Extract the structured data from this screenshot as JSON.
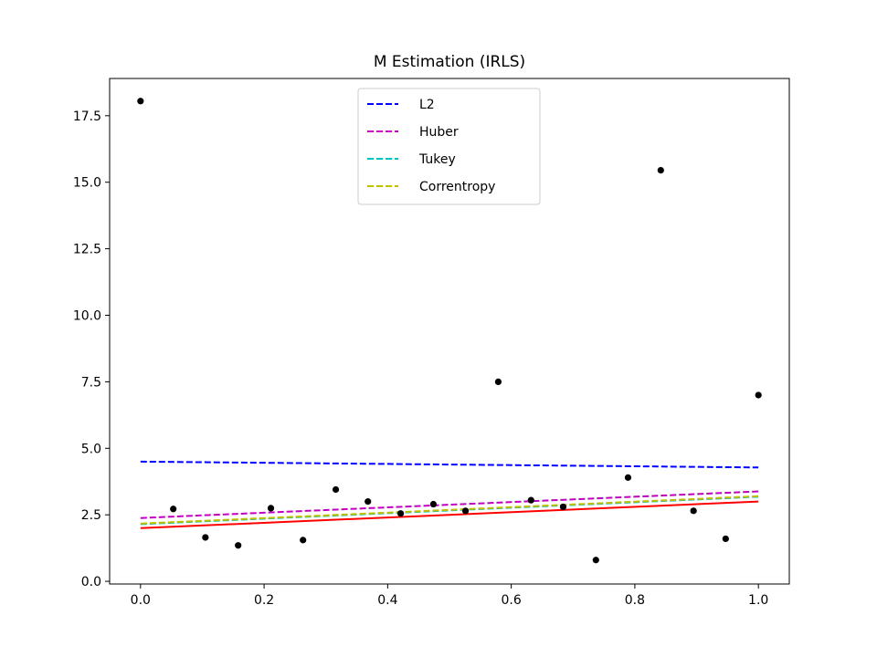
{
  "chart_data": {
    "type": "scatter",
    "title": "M Estimation (IRLS)",
    "xlabel": "",
    "ylabel": "",
    "xlim": [
      -0.05,
      1.05
    ],
    "ylim": [
      -0.1,
      18.9
    ],
    "x_ticks": [
      0.0,
      0.2,
      0.4,
      0.6,
      0.8,
      1.0
    ],
    "x_tick_labels": [
      "0.0",
      "0.2",
      "0.4",
      "0.6",
      "0.8",
      "1.0"
    ],
    "y_ticks": [
      0.0,
      2.5,
      5.0,
      7.5,
      10.0,
      12.5,
      15.0,
      17.5
    ],
    "y_tick_labels": [
      "0.0",
      "2.5",
      "5.0",
      "7.5",
      "10.0",
      "12.5",
      "15.0",
      "17.5"
    ],
    "grid": false,
    "legend_position": "upper-center",
    "points": {
      "color": "#000000",
      "x": [
        0.0,
        0.053,
        0.105,
        0.158,
        0.211,
        0.263,
        0.316,
        0.368,
        0.421,
        0.474,
        0.526,
        0.579,
        0.632,
        0.684,
        0.737,
        0.789,
        0.842,
        0.895,
        0.947,
        1.0
      ],
      "y": [
        18.05,
        2.72,
        1.65,
        1.35,
        2.75,
        1.55,
        3.45,
        3.0,
        2.55,
        2.9,
        2.65,
        7.5,
        3.05,
        2.8,
        0.8,
        3.9,
        15.45,
        2.65,
        1.6,
        7.0
      ]
    },
    "true_line": {
      "color": "#ff0000",
      "style": "solid",
      "x": [
        0.0,
        1.0
      ],
      "y": [
        2.0,
        3.0
      ]
    },
    "series": [
      {
        "name": "L2",
        "color": "#0000ff",
        "style": "dashed",
        "x": [
          0.0,
          1.0
        ],
        "y": [
          4.5,
          4.28
        ]
      },
      {
        "name": "Huber",
        "color": "#bf00bf",
        "style": "dashed",
        "x": [
          0.0,
          1.0
        ],
        "y": [
          2.38,
          3.38
        ]
      },
      {
        "name": "Tukey",
        "color": "#00bfbf",
        "style": "dashed",
        "x": [
          0.0,
          1.0
        ],
        "y": [
          2.15,
          3.18
        ]
      },
      {
        "name": "Correntropy",
        "color": "#bfbf00",
        "style": "dashed",
        "x": [
          0.0,
          1.0
        ],
        "y": [
          2.17,
          3.2
        ]
      }
    ]
  }
}
